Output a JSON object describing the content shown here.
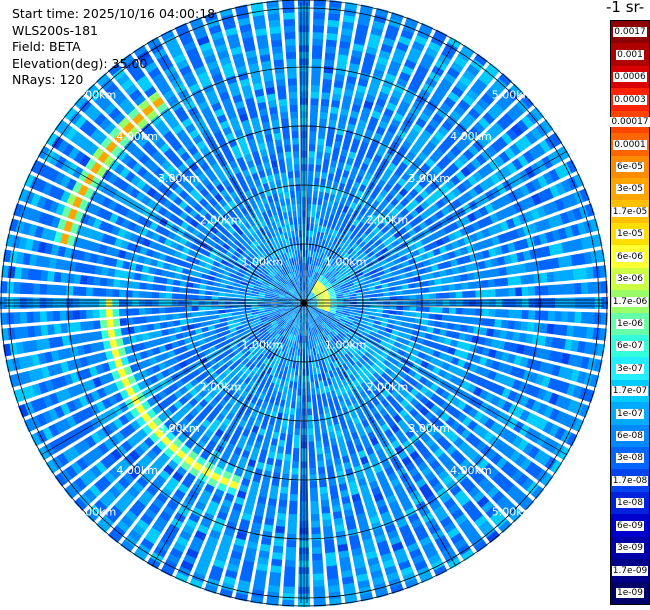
{
  "info": {
    "start_time": "Start time: 2025/10/16 04:00:18",
    "instrument": "WLS200s-181",
    "field": "Field: BETA",
    "elevation": "Elevation(deg): 35.00",
    "nrays": "NRays: 120"
  },
  "colorbar": {
    "unit_label": "-1 sr-",
    "labels": [
      "0.0017",
      "0.001",
      "0.0006",
      "0.0003",
      "0.00017",
      "0.0001",
      "6e-05",
      "3e-05",
      "1.7e-05",
      "1e-05",
      "6e-06",
      "3e-06",
      "1.7e-06",
      "1e-06",
      "6e-07",
      "3e-07",
      "1.7e-07",
      "1e-07",
      "6e-08",
      "3e-08",
      "1.7e-08",
      "1e-08",
      "6e-09",
      "3e-09",
      "1.7e-09",
      "1e-09"
    ],
    "colors": [
      "#8b0000",
      "#b00000",
      "#d80000",
      "#ff2200",
      "#ff4400",
      "#ff6600",
      "#ff8c00",
      "#ffa500",
      "#ffc000",
      "#ffdd00",
      "#ffff33",
      "#ccff44",
      "#99ff66",
      "#66ffaa",
      "#33ffdd",
      "#22eeff",
      "#00ccff",
      "#00aaff",
      "#0088ff",
      "#0066ff",
      "#0044ee",
      "#0022dd",
      "#0000cc",
      "#0000aa",
      "#000088",
      "#00006a"
    ]
  },
  "range_rings": {
    "labels": [
      "1.00km",
      "2.00km",
      "3.00km",
      "4.00km",
      "5.00km"
    ]
  },
  "chart_data": {
    "type": "heatmap",
    "projection": "polar PPI",
    "field": "BETA",
    "elevation_deg": 35.0,
    "n_rays": 120,
    "range_rings_km": [
      1,
      2,
      3,
      4,
      5
    ],
    "max_range_km": 5.0,
    "colorscale": "log",
    "colorbar_range": [
      1e-09,
      0.0017
    ],
    "background_value": 6e-08,
    "features": [
      {
        "name": "near-range aerosol band",
        "az_start_deg": 30,
        "az_end_deg": 110,
        "range_km": 0.35,
        "value": 1.7e-05
      },
      {
        "name": "western arc",
        "az_start_deg": 285,
        "az_end_deg": 325,
        "range_km": 4.2,
        "value": 3e-05
      },
      {
        "name": "southwestern arc",
        "az_start_deg": 200,
        "az_end_deg": 270,
        "range_km": 3.3,
        "value": 6e-06
      },
      {
        "name": "southeastern plume",
        "az_start_deg": 110,
        "az_end_deg": 160,
        "range_km": 1.6,
        "value": 1.7e-07
      }
    ]
  }
}
